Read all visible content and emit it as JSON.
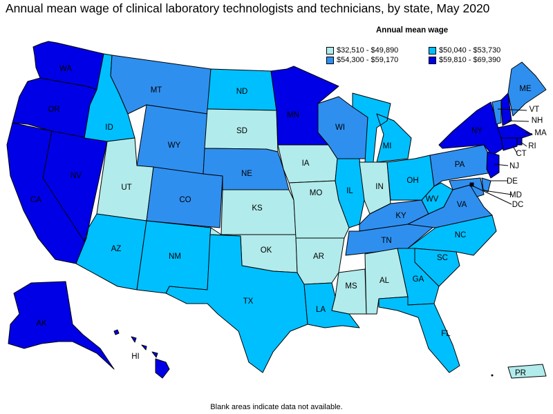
{
  "title": "Annual mean wage of clinical laboratory technologists and technicians, by state, May 2020",
  "legend": {
    "title": "Annual mean wage",
    "items": [
      {
        "label": "$32,510 - $49,890",
        "color": "#b2ebeb"
      },
      {
        "label": "$50,040 - $53,730",
        "color": "#00bfff"
      },
      {
        "label": "$54,300 - $59,170",
        "color": "#2f8fef"
      },
      {
        "label": "$59,810 - $69,390",
        "color": "#0000e6"
      }
    ]
  },
  "footnote": "Blank areas indicate data not available.",
  "states": {
    "WA": 3,
    "OR": 3,
    "CA": 3,
    "NV": 3,
    "ID": 1,
    "MT": 2,
    "WY": 2,
    "UT": 0,
    "CO": 2,
    "AZ": 1,
    "NM": 1,
    "ND": 1,
    "SD": 0,
    "NE": 2,
    "KS": 0,
    "OK": 0,
    "TX": 1,
    "MN": 3,
    "IA": 0,
    "MO": 0,
    "AR": 0,
    "LA": 1,
    "WI": 2,
    "IL": 1,
    "MS": 0,
    "MI": 1,
    "IN": 0,
    "KY": 2,
    "TN": 2,
    "AL": 0,
    "OH": 1,
    "WV": 1,
    "VA": 2,
    "NC": 1,
    "SC": 1,
    "GA": 1,
    "FL": 1,
    "PA": 2,
    "NY": 3,
    "VT": 2,
    "NH": 3,
    "ME": 2,
    "MA": 3,
    "RI": 3,
    "CT": 3,
    "NJ": 3,
    "DE": 2,
    "MD": 2,
    "DC": 3,
    "AK": 3,
    "HI": 3,
    "PR": 0
  },
  "labels": {
    "WA": "WA",
    "OR": "OR",
    "CA": "CA",
    "NV": "NV",
    "ID": "ID",
    "MT": "MT",
    "WY": "WY",
    "UT": "UT",
    "CO": "CO",
    "AZ": "AZ",
    "NM": "NM",
    "ND": "ND",
    "SD": "SD",
    "NE": "NE",
    "KS": "KS",
    "OK": "OK",
    "TX": "TX",
    "MN": "MN",
    "IA": "IA",
    "MO": "MO",
    "AR": "AR",
    "LA": "LA",
    "WI": "WI",
    "IL": "IL",
    "MS": "MS",
    "MI": "MI",
    "IN": "IN",
    "KY": "KY",
    "TN": "TN",
    "AL": "AL",
    "OH": "OH",
    "WV": "WV",
    "VA": "VA",
    "NC": "NC",
    "SC": "SC",
    "GA": "GA",
    "FL": "FL",
    "PA": "PA",
    "NY": "NY",
    "VT": "VT",
    "NH": "NH",
    "ME": "ME",
    "MA": "MA",
    "RI": "RI",
    "CT": "CT",
    "NJ": "NJ",
    "DE": "DE",
    "MD": "MD",
    "DC": "DC",
    "AK": "AK",
    "HI": "HI",
    "PR": "PR"
  }
}
